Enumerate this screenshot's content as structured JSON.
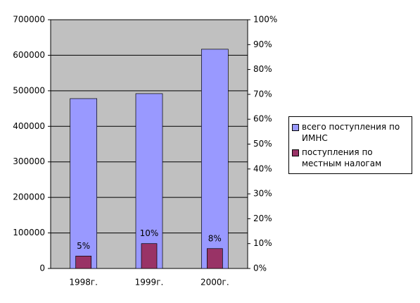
{
  "chart_data": {
    "type": "bar",
    "categories": [
      "1998г.",
      "1999г.",
      "2000г."
    ],
    "series": [
      {
        "name": "всего поступления по ИМНС",
        "color": "#9999ff",
        "values": [
          478000,
          492000,
          617000
        ]
      },
      {
        "name": "поступления по местным налогам",
        "color": "#993366",
        "values": [
          5,
          10,
          8
        ],
        "value_labels": [
          "5%",
          "10%",
          "8%"
        ],
        "axis": "y2"
      }
    ],
    "ylim": [
      0,
      700000
    ],
    "yticks": [
      0,
      100000,
      200000,
      300000,
      400000,
      500000,
      600000,
      700000
    ],
    "y2lim": [
      0,
      100
    ],
    "y2ticks": [
      {
        "value": 0,
        "label": "0%"
      },
      {
        "value": 10,
        "label": "10%"
      },
      {
        "value": 20,
        "label": "20%"
      },
      {
        "value": 30,
        "label": "30%"
      },
      {
        "value": 40,
        "label": "40%"
      },
      {
        "value": 50,
        "label": "50%"
      },
      {
        "value": 60,
        "label": "60%"
      },
      {
        "value": 70,
        "label": "70%"
      },
      {
        "value": 80,
        "label": "80%"
      },
      {
        "value": 90,
        "label": "90%"
      },
      {
        "value": 100,
        "label": "100%"
      }
    ],
    "grid": true,
    "legend": "right"
  }
}
